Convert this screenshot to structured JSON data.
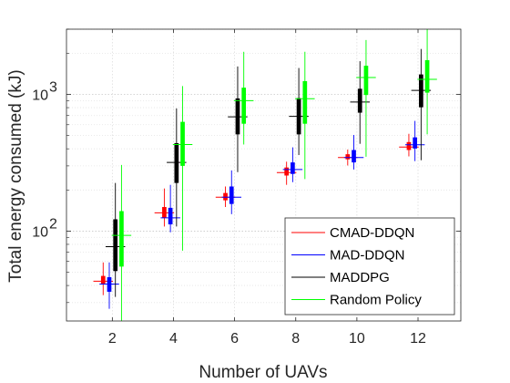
{
  "chart_data": {
    "type": "box",
    "xlabel": "Number of UAVs",
    "ylabel": "Total energy consumed (kJ)",
    "yscale": "log",
    "ylim": [
      22,
      3000
    ],
    "xlim": [
      0.5,
      13.4
    ],
    "x_ticks": [
      2,
      4,
      6,
      8,
      10,
      12
    ],
    "x_tick_labels": [
      "2",
      "4",
      "6",
      "8",
      "10",
      "12"
    ],
    "y_ticks": [
      100,
      1000
    ],
    "y_tick_labels": [
      {
        "base": "10",
        "exp": "2"
      },
      {
        "base": "10",
        "exp": "3"
      }
    ],
    "grid": true,
    "minor_grid": true,
    "legend_position": "bottom-right",
    "categories": [
      2,
      4,
      6,
      8,
      10,
      12
    ],
    "series": [
      {
        "name": "CMAD-DDQN",
        "color": "#ff0000",
        "boxes": [
          {
            "whisker_low": 34,
            "q1": 41,
            "median": 43,
            "q3": 47,
            "whisker_high": 59
          },
          {
            "whisker_low": 108,
            "q1": 125,
            "median": 136,
            "q3": 150,
            "whisker_high": 205
          },
          {
            "whisker_low": 150,
            "q1": 168,
            "median": 177,
            "q3": 190,
            "whisker_high": 212
          },
          {
            "whisker_low": 218,
            "q1": 255,
            "median": 268,
            "q3": 292,
            "whisker_high": 322
          },
          {
            "whisker_low": 302,
            "q1": 335,
            "median": 345,
            "q3": 365,
            "whisker_high": 395
          },
          {
            "whisker_low": 352,
            "q1": 392,
            "median": 412,
            "q3": 448,
            "whisker_high": 515
          }
        ]
      },
      {
        "name": "MAD-DDQN",
        "color": "#0000ff",
        "boxes": [
          {
            "whisker_low": 27,
            "q1": 36,
            "median": 41,
            "q3": 46,
            "whisker_high": 59
          },
          {
            "whisker_low": 98,
            "q1": 112,
            "median": 125,
            "q3": 148,
            "whisker_high": 218
          },
          {
            "whisker_low": 133,
            "q1": 158,
            "median": 177,
            "q3": 212,
            "whisker_high": 278
          },
          {
            "whisker_low": 228,
            "q1": 262,
            "median": 282,
            "q3": 318,
            "whisker_high": 410
          },
          {
            "whisker_low": 282,
            "q1": 318,
            "median": 345,
            "q3": 392,
            "whisker_high": 505
          },
          {
            "whisker_low": 325,
            "q1": 402,
            "median": 428,
            "q3": 485,
            "whisker_high": 640
          }
        ]
      },
      {
        "name": "MADDPG",
        "color": "#000000",
        "boxes": [
          {
            "whisker_low": 33,
            "q1": 51,
            "median": 77,
            "q3": 122,
            "whisker_high": 225
          },
          {
            "whisker_low": 108,
            "q1": 225,
            "median": 318,
            "q3": 440,
            "whisker_high": 790
          },
          {
            "whisker_low": 270,
            "q1": 510,
            "median": 685,
            "q3": 935,
            "whisker_high": 1600
          },
          {
            "whisker_low": 360,
            "q1": 510,
            "median": 690,
            "q3": 940,
            "whisker_high": 1560
          },
          {
            "whisker_low": 435,
            "q1": 735,
            "median": 880,
            "q3": 1100,
            "whisker_high": 1750
          },
          {
            "whisker_low": 330,
            "q1": 805,
            "median": 1070,
            "q3": 1400,
            "whisker_high": 2150
          }
        ]
      },
      {
        "name": "Random Policy",
        "color": "#00ff00",
        "boxes": [
          {
            "whisker_low": 22,
            "q1": 55,
            "median": 93,
            "q3": 140,
            "whisker_high": 305
          },
          {
            "whisker_low": 72,
            "q1": 300,
            "median": 430,
            "q3": 630,
            "whisker_high": 1150
          },
          {
            "whisker_low": 430,
            "q1": 610,
            "median": 900,
            "q3": 1120,
            "whisker_high": 2050
          },
          {
            "whisker_low": 240,
            "q1": 610,
            "median": 930,
            "q3": 1250,
            "whisker_high": 2050
          },
          {
            "whisker_low": 350,
            "q1": 990,
            "median": 1330,
            "q3": 1620,
            "whisker_high": 2500
          },
          {
            "whisker_low": 510,
            "q1": 1030,
            "median": 1290,
            "q3": 1780,
            "whisker_high": 3000
          }
        ]
      }
    ]
  }
}
